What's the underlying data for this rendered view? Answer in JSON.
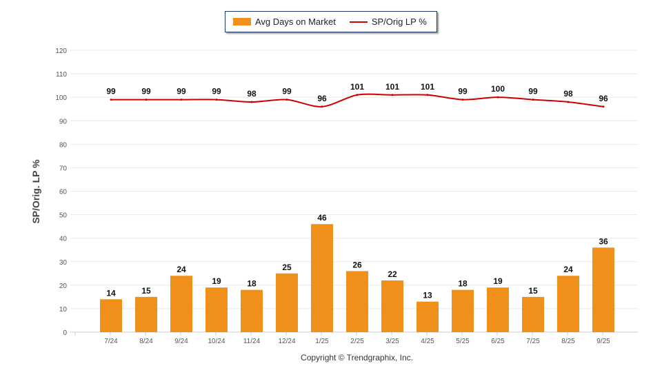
{
  "chart_data": {
    "type": "bar+line",
    "categories": [
      "7/24",
      "8/24",
      "9/24",
      "10/24",
      "11/24",
      "12/24",
      "1/25",
      "2/25",
      "3/25",
      "4/25",
      "5/25",
      "6/25",
      "7/25",
      "8/25",
      "9/25"
    ],
    "series": [
      {
        "name": "Avg Days on Market",
        "type": "bar",
        "color": "#f0901a",
        "values": [
          14,
          15,
          24,
          19,
          18,
          25,
          46,
          26,
          22,
          13,
          18,
          19,
          15,
          24,
          36
        ]
      },
      {
        "name": "SP/Orig LP %",
        "type": "line",
        "color": "#cc0000",
        "values": [
          99,
          99,
          99,
          99,
          98,
          99,
          96,
          101,
          101,
          101,
          99,
          100,
          99,
          98,
          96
        ]
      }
    ],
    "ylabel": "SP/Orig. LP %",
    "ylim": [
      0,
      120
    ],
    "yticks": [
      0,
      10,
      20,
      30,
      40,
      50,
      60,
      70,
      80,
      90,
      100,
      110,
      120
    ],
    "grid": true,
    "legend": "top-center"
  },
  "legend": {
    "bar_label": "Avg Days on Market",
    "line_label": "SP/Orig LP %"
  },
  "copyright": "Copyright © Trendgraphix, Inc."
}
